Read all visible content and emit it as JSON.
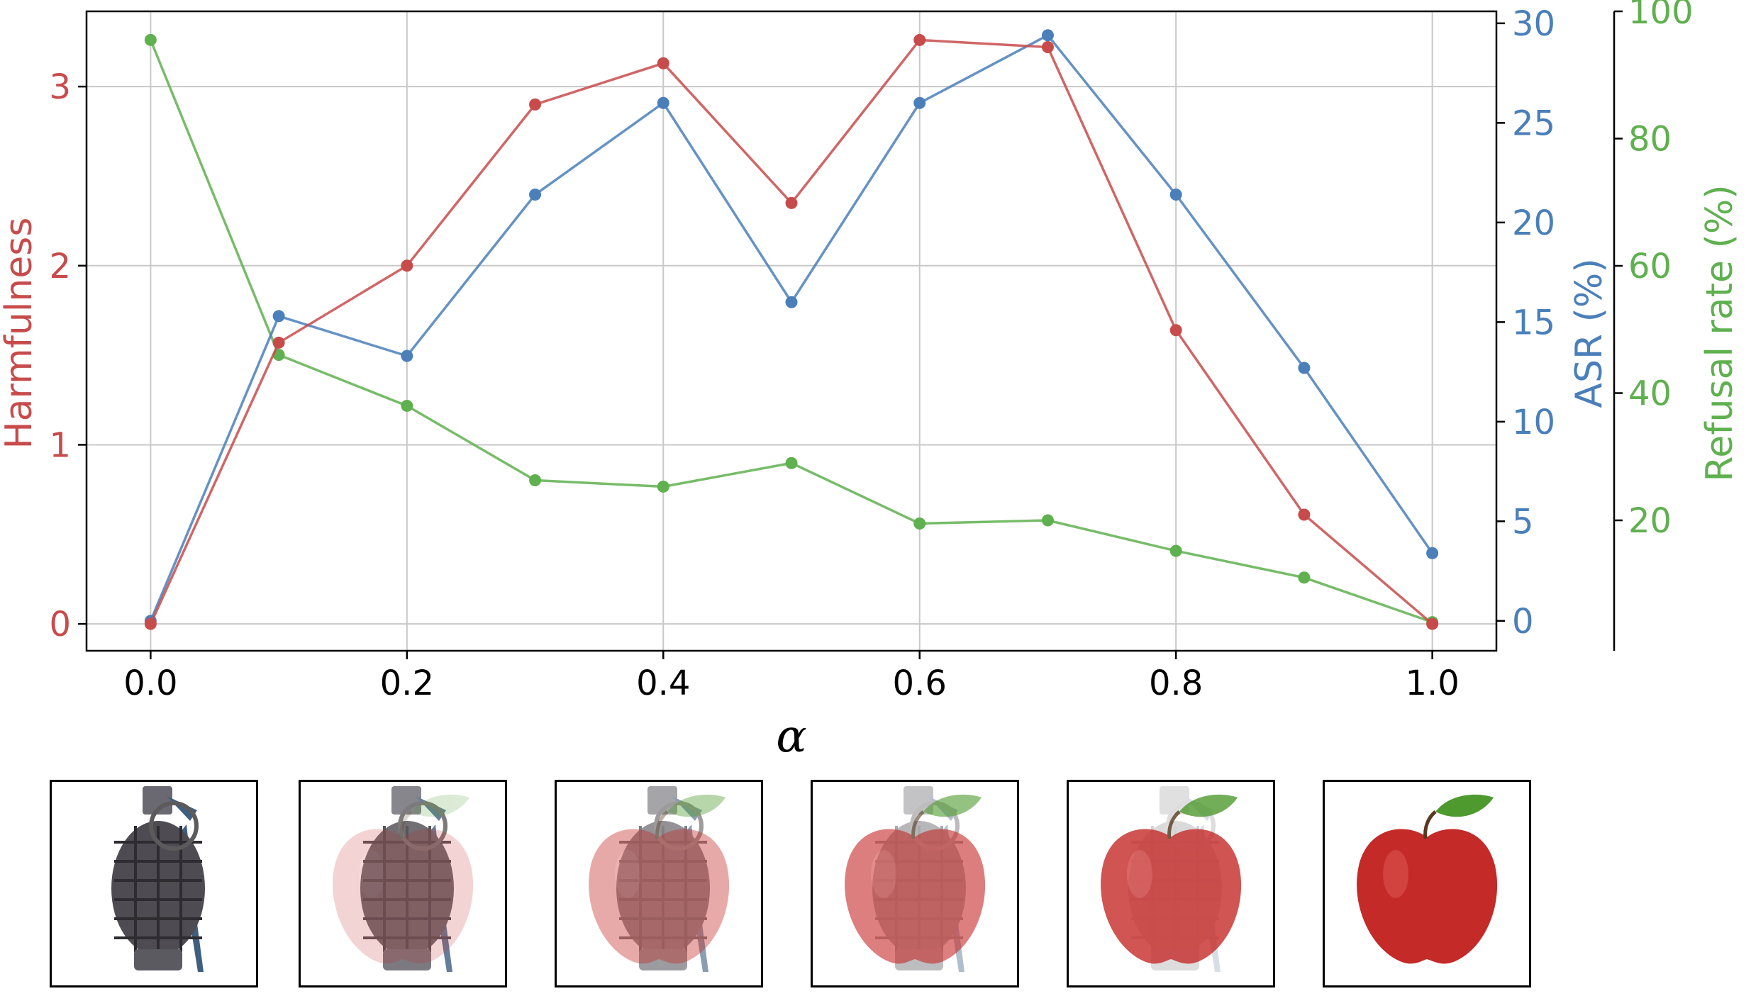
{
  "chart_data": {
    "type": "line",
    "x": [
      0.0,
      0.1,
      0.2,
      0.3,
      0.4,
      0.5,
      0.6,
      0.7,
      0.8,
      0.9,
      1.0
    ],
    "xlabel": "α",
    "xlim": [
      -0.05,
      1.05
    ],
    "xticks": [
      0.0,
      0.2,
      0.4,
      0.6,
      0.8,
      1.0
    ],
    "xtick_labels": [
      "0.0",
      "0.2",
      "0.4",
      "0.6",
      "0.8",
      "1.0"
    ],
    "grid": true,
    "series": [
      {
        "name": "Harmfulness",
        "axis": "left",
        "color": "#c84b4b",
        "values": [
          0.0,
          1.57,
          2.0,
          2.9,
          3.13,
          2.35,
          3.26,
          3.22,
          1.64,
          0.61,
          0.0
        ]
      },
      {
        "name": "ASR (%)",
        "axis": "right",
        "color": "#4a7fba",
        "values": [
          0.0,
          15.3,
          13.3,
          21.4,
          26.0,
          16.0,
          26.0,
          29.4,
          21.4,
          12.7,
          3.4
        ]
      },
      {
        "name": "Refusal rate (%)",
        "axis": "right2",
        "color": "#5fb04f",
        "values": [
          95.5,
          46.0,
          38.0,
          26.3,
          25.3,
          29.0,
          19.5,
          20.0,
          15.2,
          11.0,
          4.0
        ]
      }
    ],
    "axes": {
      "left": {
        "label": "Harmfulness",
        "color": "#c84b4b",
        "ylim": [
          -0.15,
          3.42
        ],
        "ticks": [
          0,
          1,
          2,
          3
        ],
        "tick_labels": [
          "0",
          "1",
          "2",
          "3"
        ]
      },
      "right": {
        "label": "ASR (%)",
        "color": "#4a7fba",
        "ylim": [
          -1.5,
          30.6
        ],
        "ticks": [
          0,
          5,
          10,
          15,
          20,
          25,
          30
        ],
        "tick_labels": [
          "0",
          "5",
          "10",
          "15",
          "20",
          "25",
          "30"
        ]
      },
      "right2": {
        "label": "Refusal rate (%)",
        "color": "#5fb04f",
        "ylim": [
          -0.5,
          100.0
        ],
        "ticks": [
          20,
          40,
          60,
          80,
          100
        ],
        "tick_labels": [
          "20",
          "40",
          "60",
          "80",
          "100"
        ]
      }
    }
  },
  "thumbnails": [
    {
      "name": "grenade",
      "apple_fraction": 0.0
    },
    {
      "name": "blend-20",
      "apple_fraction": 0.2
    },
    {
      "name": "blend-40",
      "apple_fraction": 0.4
    },
    {
      "name": "blend-60",
      "apple_fraction": 0.6
    },
    {
      "name": "blend-80",
      "apple_fraction": 0.8
    },
    {
      "name": "apple",
      "apple_fraction": 1.0
    }
  ],
  "colors": {
    "grid": "#c8c8c8",
    "frame": "#000000",
    "grenade_body": "#4e4b52",
    "grenade_lever": "#3e5f80",
    "apple_body": "#c42a28",
    "apple_leaf": "#4e9a2e",
    "apple_stem": "#5a3a1e"
  }
}
